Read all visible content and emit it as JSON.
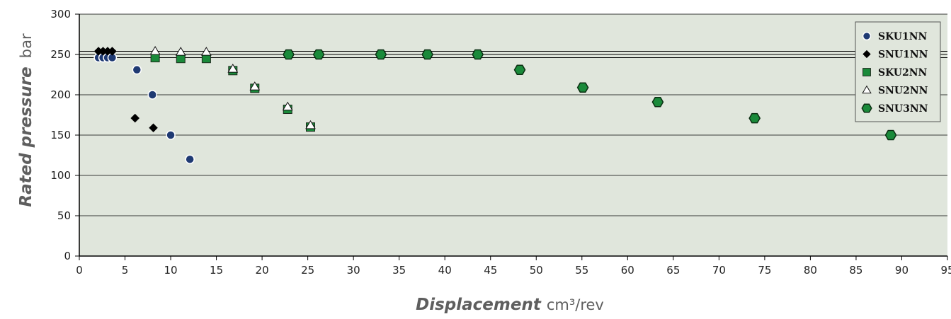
{
  "chart_data": {
    "type": "scatter",
    "title": "",
    "xlabel": {
      "main": "Displacement",
      "unit": "cm³/rev"
    },
    "ylabel": {
      "main": "Rated pressure",
      "unit": "bar"
    },
    "xlim": [
      0,
      95
    ],
    "ylim": [
      0,
      300
    ],
    "xticks": [
      0,
      5,
      10,
      15,
      20,
      25,
      30,
      35,
      40,
      45,
      50,
      55,
      60,
      65,
      70,
      75,
      80,
      85,
      90,
      95
    ],
    "yticks": [
      0,
      50,
      100,
      150,
      200,
      250,
      300
    ],
    "grid": "horizontal",
    "reference_lines_y": [
      246,
      250,
      254
    ],
    "legend_position": "top-right",
    "series": [
      {
        "name": "SKU1NN",
        "marker": "circle",
        "color": "#1f3a73",
        "x": [
          2.1,
          2.6,
          3.1,
          3.6,
          6.3,
          8.0,
          10.0,
          12.1
        ],
        "y": [
          246,
          246,
          246,
          246,
          231,
          200,
          150,
          120
        ]
      },
      {
        "name": "SNU1NN",
        "marker": "diamond",
        "color": "#000000",
        "x": [
          2.1,
          2.6,
          3.1,
          3.6,
          6.1,
          8.1
        ],
        "y": [
          254,
          254,
          254,
          254,
          171,
          159
        ]
      },
      {
        "name": "SKU2NN",
        "marker": "square",
        "color": "#1a8a3a",
        "x": [
          8.3,
          11.1,
          13.9,
          16.8,
          19.2,
          22.8,
          25.3
        ],
        "y": [
          246,
          245,
          245,
          230,
          208,
          182,
          160
        ]
      },
      {
        "name": "SNU2NN",
        "marker": "triangle",
        "color": "#ffffff",
        "x": [
          8.3,
          11.1,
          13.9,
          16.8,
          19.2,
          22.8,
          25.3
        ],
        "y": [
          254,
          253,
          253,
          232,
          210,
          185,
          162
        ]
      },
      {
        "name": "SNU3NN",
        "marker": "hexagon",
        "color": "#1a8a3a",
        "x": [
          22.9,
          26.2,
          33.0,
          38.1,
          43.6,
          48.2,
          55.1,
          63.3,
          73.9,
          88.8
        ],
        "y": [
          250,
          250,
          250,
          250,
          250,
          231,
          209,
          191,
          171,
          150
        ]
      }
    ]
  },
  "colors": {
    "plot_background": "#e0e6dc",
    "grid": "#000000",
    "legend_background": "#e0e6dc"
  }
}
